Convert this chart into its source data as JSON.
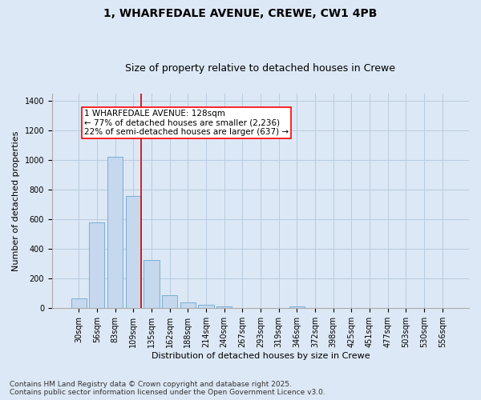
{
  "title_line1": "1, WHARFEDALE AVENUE, CREWE, CW1 4PB",
  "title_line2": "Size of property relative to detached houses in Crewe",
  "xlabel": "Distribution of detached houses by size in Crewe",
  "ylabel": "Number of detached properties",
  "categories": [
    "30sqm",
    "56sqm",
    "83sqm",
    "109sqm",
    "135sqm",
    "162sqm",
    "188sqm",
    "214sqm",
    "240sqm",
    "267sqm",
    "293sqm",
    "319sqm",
    "346sqm",
    "372sqm",
    "398sqm",
    "425sqm",
    "451sqm",
    "477sqm",
    "503sqm",
    "530sqm",
    "556sqm"
  ],
  "values": [
    65,
    580,
    1020,
    760,
    325,
    90,
    38,
    22,
    12,
    0,
    0,
    0,
    15,
    0,
    0,
    0,
    0,
    0,
    0,
    0,
    0
  ],
  "bar_color": "#c5d8ee",
  "bar_edge_color": "#7aaed4",
  "vline_color": "#cc0000",
  "vline_pos": 3.45,
  "annotation_box_text": "1 WHARFEDALE AVENUE: 128sqm\n← 77% of detached houses are smaller (2,236)\n22% of semi-detached houses are larger (637) →",
  "ylim": [
    0,
    1450
  ],
  "yticks": [
    0,
    200,
    400,
    600,
    800,
    1000,
    1200,
    1400
  ],
  "footnote": "Contains HM Land Registry data © Crown copyright and database right 2025.\nContains public sector information licensed under the Open Government Licence v3.0.",
  "fig_bg_color": "#dce8f5",
  "plot_bg_color": "#dce8f5",
  "grid_color": "#b8cce0",
  "title_fontsize": 10,
  "subtitle_fontsize": 9,
  "axis_label_fontsize": 8,
  "tick_fontsize": 7,
  "annotation_fontsize": 7.5,
  "footnote_fontsize": 6.5
}
